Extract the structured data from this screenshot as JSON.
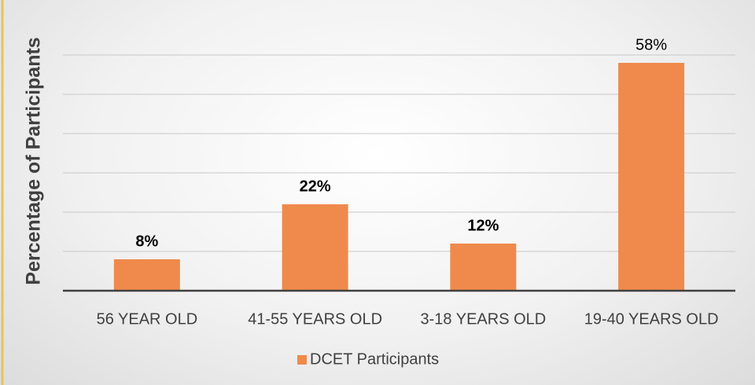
{
  "chart_data": {
    "type": "bar",
    "y_axis_label": "Percentage of Participants",
    "categories": [
      "56 YEAR OLD",
      "41-55 YEARS OLD",
      "3-18 YEARS OLD",
      "19-40 YEARS OLD"
    ],
    "series": [
      {
        "name": "DCET Participants",
        "color": "#ef8a4c",
        "values": [
          8,
          22,
          12,
          58
        ],
        "value_labels": [
          "8%",
          "22%",
          "12%",
          "58%"
        ],
        "value_label_bold": [
          true,
          true,
          true,
          false
        ]
      }
    ],
    "ylim": [
      0,
      70
    ],
    "yticks": [
      0,
      10,
      20,
      30,
      40,
      50,
      60
    ],
    "grid": true,
    "legend": "bottom"
  }
}
